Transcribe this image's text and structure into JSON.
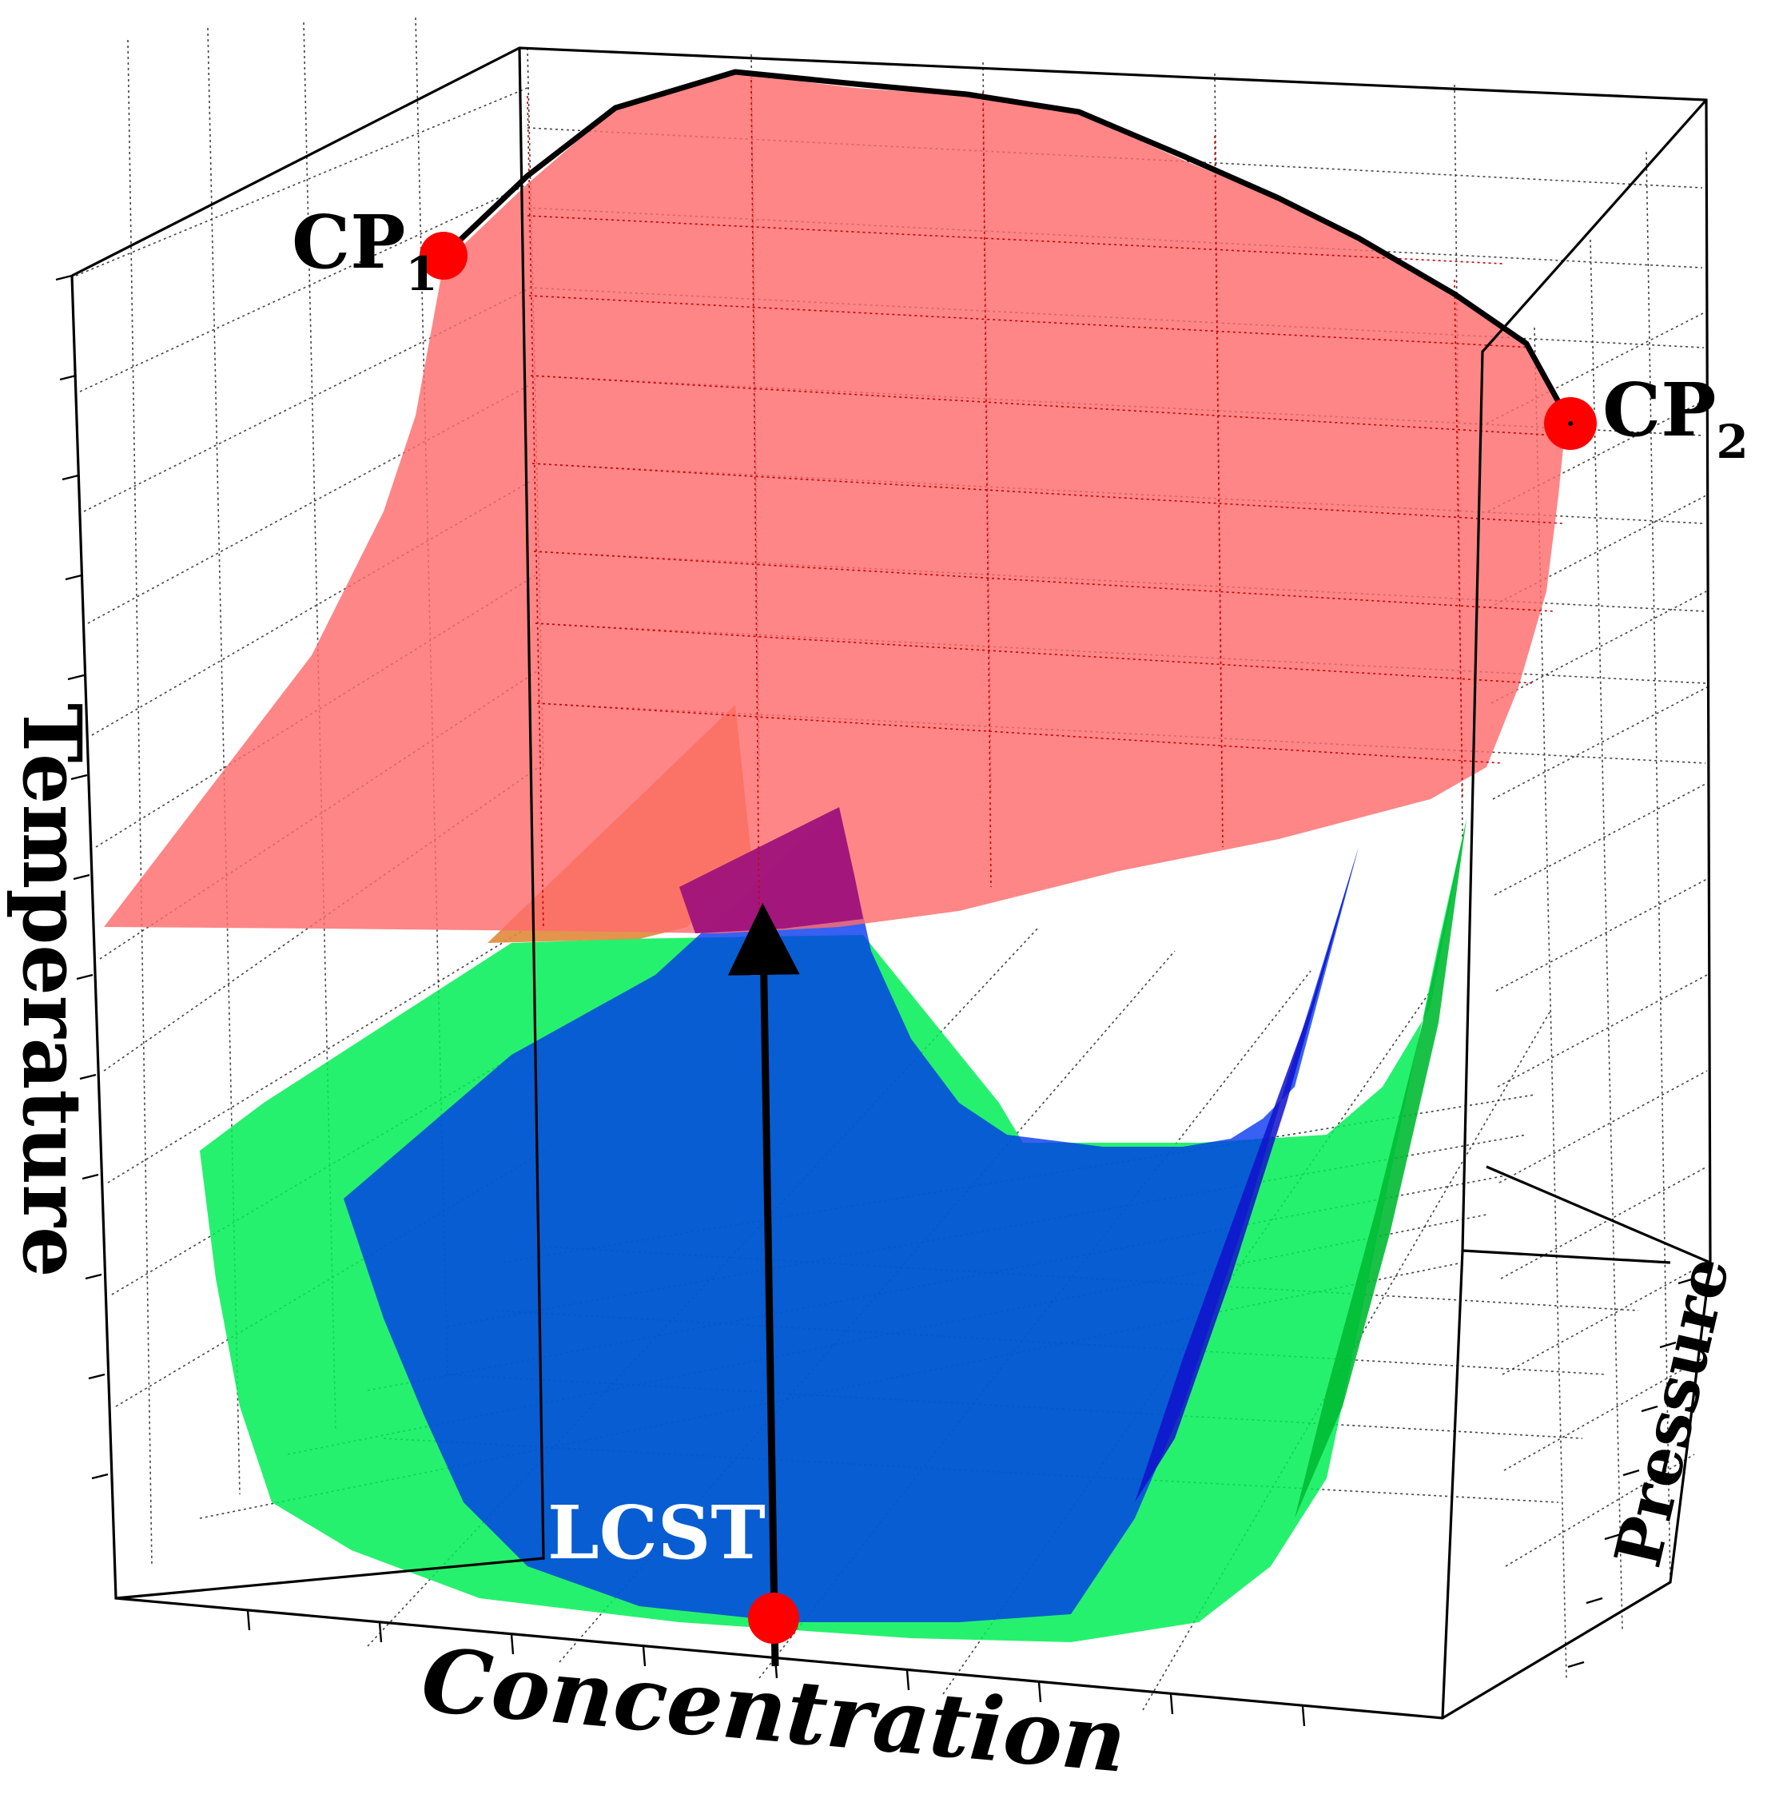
{
  "axes": {
    "x_label": "Concentration",
    "y_label": "Temperature",
    "z_label": "Pressure"
  },
  "annotations": {
    "cp1_base": "CP",
    "cp1_sub": "1",
    "cp2_base": "CP",
    "cp2_sub": "2",
    "lcst": "LCST"
  },
  "colors": {
    "ucst_surface": "#ff6b6b",
    "blue_surface": "#0033ee",
    "green_surface": "#00ee55",
    "critical_point": "#ff0000",
    "critical_line": "#000000",
    "lcst_label": "#ffffff"
  }
}
